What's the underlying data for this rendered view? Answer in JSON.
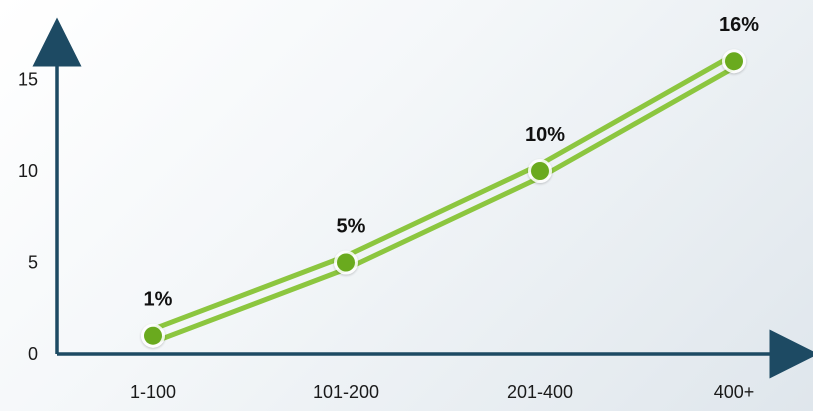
{
  "colors": {
    "axis": "#1d4a63",
    "line": "#8cc63f",
    "marker_fill": "#6aaa1e",
    "marker_ring": "#ffffff",
    "text": "#1a1a1a"
  },
  "chart_data": {
    "type": "line",
    "title": "",
    "xlabel": "",
    "ylabel": "",
    "categories": [
      "1-100",
      "101-200",
      "201-400",
      "400+"
    ],
    "series": [
      {
        "values": [
          1,
          5,
          10,
          16
        ],
        "data_labels": [
          "1%",
          "5%",
          "10%",
          "16%"
        ]
      }
    ],
    "y_ticks": [
      0,
      5,
      10,
      15
    ],
    "y_tick_labels": [
      "0",
      "5",
      "10",
      "15"
    ],
    "ylim": [
      0,
      16
    ],
    "grid": false,
    "legend": "none",
    "line_style": "double"
  }
}
